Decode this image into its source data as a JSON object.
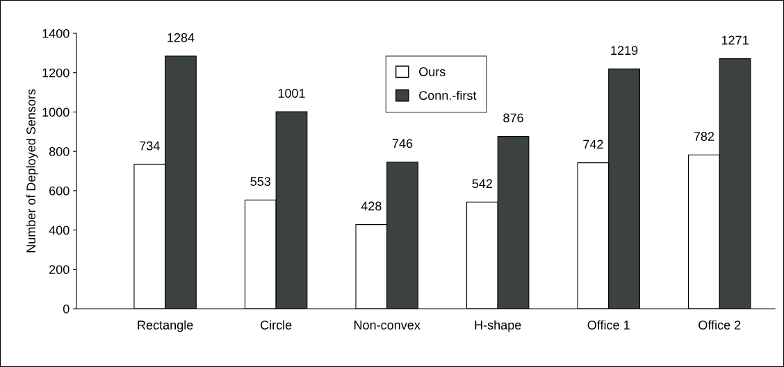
{
  "chart_data": {
    "type": "bar",
    "ylabel": "Number of Deployed Sensors",
    "categories": [
      "Rectangle",
      "Circle",
      "Non-convex",
      "H-shape",
      "Office 1",
      "Office 2"
    ],
    "series": [
      {
        "name": "Ours",
        "color": "#ffffff",
        "values": [
          734,
          553,
          428,
          542,
          742,
          782
        ]
      },
      {
        "name": "Conn.-first",
        "color": "#3c4242",
        "values": [
          1284,
          1001,
          746,
          876,
          1219,
          1271
        ]
      }
    ],
    "ylim": [
      0,
      1400
    ],
    "yticks": [
      0,
      200,
      400,
      600,
      800,
      1000,
      1200,
      1400
    ],
    "grid": false,
    "legend": "top",
    "data_labels": true
  }
}
